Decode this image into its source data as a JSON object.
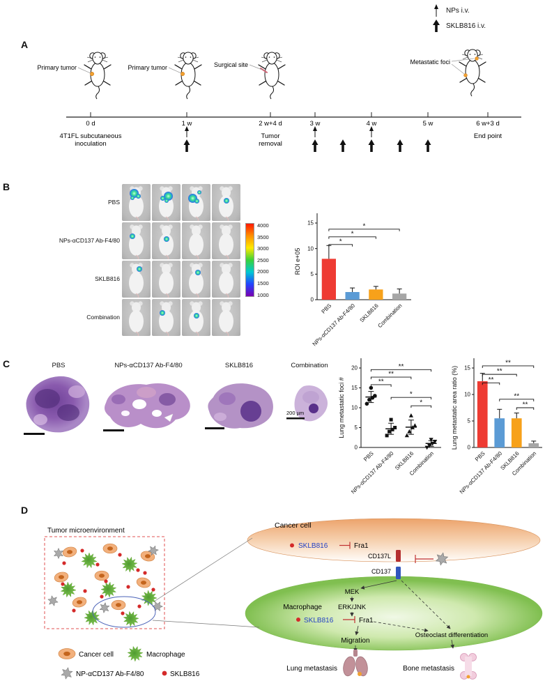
{
  "groups": [
    "PBS",
    "NPs-αCD137 Ab-F4/80",
    "SKLB816",
    "Combination"
  ],
  "top_legend": {
    "nps": "NPs i.v.",
    "sklb": "SKLB816 i.v."
  },
  "panel_a": {
    "label": "A",
    "callouts": [
      "Primary tumor",
      "Primary tumor",
      "Surgical site",
      "Metastatic foci"
    ],
    "timeline_ticks": [
      "0 d",
      "1 w",
      "2 w+4 d",
      "3 w",
      "4 w",
      "5 w",
      "6 w+3 d"
    ],
    "below": {
      "inoculation_1": "4T1FL subcutaneous",
      "inoculation_2": "inoculation",
      "removal_1": "Tumor",
      "removal_2": "removal",
      "end_point": "End point"
    }
  },
  "panel_b": {
    "label": "B",
    "colorbar_ticks": [
      "4000",
      "3500",
      "3000",
      "2500",
      "2000",
      "1500",
      "1000"
    ],
    "luminescence": [
      [
        3,
        3,
        3,
        1
      ],
      [
        1,
        1,
        0,
        0
      ],
      [
        1,
        0,
        1,
        0
      ],
      [
        0,
        1,
        1,
        0
      ]
    ],
    "chart": {
      "type": "bar",
      "ylabel": "ROI e+05",
      "ylim": [
        0,
        15
      ],
      "yticks": [
        0,
        5,
        10,
        15
      ],
      "values": [
        8,
        1.5,
        2,
        1.2
      ],
      "errors": [
        2.6,
        0.8,
        0.6,
        0.9
      ],
      "bar_colors": [
        "#ee3b33",
        "#5b9bd5",
        "#f7a11a",
        "#a6a6a6"
      ],
      "sig": [
        {
          "a": 0,
          "b": 1,
          "y": 10.8,
          "label": "*"
        },
        {
          "a": 0,
          "b": 2,
          "y": 12.3,
          "label": "*"
        },
        {
          "a": 0,
          "b": 3,
          "y": 13.8,
          "label": "*"
        }
      ]
    }
  },
  "panel_c": {
    "label": "C",
    "scale_bar": "200 µm",
    "scatter": {
      "type": "scatter",
      "ylabel": "Lung metastatic foci #",
      "ylim": [
        0,
        20
      ],
      "yticks": [
        0,
        5,
        10,
        15,
        20
      ],
      "markers": [
        "circle",
        "square",
        "triangle-up",
        "triangle-down"
      ],
      "points": [
        [
          11,
          12,
          12.5,
          13,
          15
        ],
        [
          3,
          4,
          4.5,
          5,
          7
        ],
        [
          3,
          4,
          5,
          5.5,
          8
        ],
        [
          0,
          0.5,
          1,
          1.5,
          2
        ]
      ],
      "means": [
        12.7,
        4.7,
        5.1,
        1
      ],
      "errors": [
        1.4,
        1.4,
        1.8,
        0.7
      ],
      "sig": [
        {
          "a": 0,
          "b": 1,
          "y": 15.8,
          "label": "**"
        },
        {
          "a": 0,
          "b": 2,
          "y": 17.7,
          "label": "**"
        },
        {
          "a": 0,
          "b": 3,
          "y": 19.6,
          "label": "**"
        },
        {
          "a": 1,
          "b": 3,
          "y": 12.6,
          "label": "*"
        },
        {
          "a": 2,
          "b": 3,
          "y": 10.5,
          "label": "*"
        }
      ]
    },
    "bar": {
      "type": "bar",
      "ylabel": "Lung metastatic area ratio (%)",
      "ylim": [
        0,
        15
      ],
      "yticks": [
        0,
        5,
        10,
        15
      ],
      "values": [
        12.5,
        5.5,
        5.5,
        0.8
      ],
      "errors": [
        1.5,
        1.7,
        1.0,
        0.4
      ],
      "bar_colors": [
        "#ee3b33",
        "#5b9bd5",
        "#f7a11a",
        "#a6a6a6"
      ],
      "sig": [
        {
          "a": 0,
          "b": 1,
          "y": 12.2,
          "label": "**"
        },
        {
          "a": 0,
          "b": 2,
          "y": 13.8,
          "label": "**"
        },
        {
          "a": 0,
          "b": 3,
          "y": 15.4,
          "label": "**"
        },
        {
          "a": 1,
          "b": 3,
          "y": 9.1,
          "label": "**"
        },
        {
          "a": 2,
          "b": 3,
          "y": 7.5,
          "label": "**"
        }
      ]
    }
  },
  "panel_d": {
    "label": "D",
    "tme_title": "Tumor microenvironment",
    "cancer_cell_title": "Cancer cell",
    "sklb816": "SKLB816",
    "fra1": "Fra1",
    "cd137l": "CD137L",
    "cd137": "CD137",
    "mek": "MEK",
    "erk_jnk": "ERK/JNK",
    "macrophage": "Macrophage",
    "migration": "Migration",
    "osteoclast": "Osteoclast differentiation",
    "lung_metastasis": "Lung metastasis",
    "bone_metastasis": "Bone metastasis",
    "legend": {
      "cancer_cell": "Cancer cell",
      "macrophage": "Macrophage",
      "np": "NP-αCD137 Ab-F4/80",
      "sklb816": "SKLB816"
    }
  }
}
